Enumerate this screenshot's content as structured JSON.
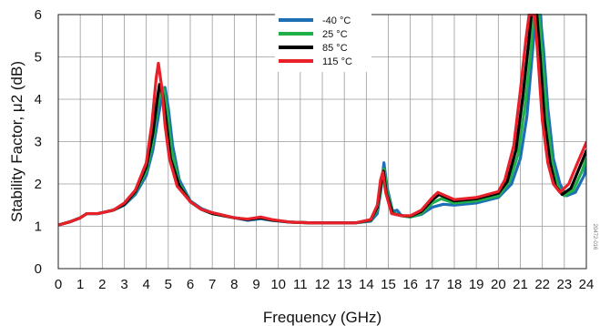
{
  "chart_data": {
    "type": "line",
    "title": "",
    "xlabel": "Frequency (GHz)",
    "ylabel": "Stability Factor, μ2 (dB)",
    "xlim": [
      0,
      24
    ],
    "ylim": [
      0,
      6
    ],
    "xticks": [
      0,
      1,
      2,
      3,
      4,
      5,
      6,
      7,
      8,
      9,
      10,
      11,
      12,
      13,
      14,
      15,
      16,
      17,
      18,
      19,
      20,
      21,
      22,
      23,
      24
    ],
    "yticks": [
      0,
      1,
      2,
      3,
      4,
      5,
      6
    ],
    "grid": true,
    "legend_position": "top-center",
    "side_note": "20472-016",
    "series": [
      {
        "name": "-40 °C",
        "color": "#1f6fb5",
        "points": [
          [
            0,
            1.03
          ],
          [
            0.5,
            1.1
          ],
          [
            1,
            1.2
          ],
          [
            1.3,
            1.3
          ],
          [
            1.8,
            1.3
          ],
          [
            2.5,
            1.38
          ],
          [
            3,
            1.5
          ],
          [
            3.5,
            1.75
          ],
          [
            4,
            2.2
          ],
          [
            4.3,
            2.8
          ],
          [
            4.55,
            3.6
          ],
          [
            4.75,
            4.2
          ],
          [
            4.85,
            4.28
          ],
          [
            5,
            3.8
          ],
          [
            5.2,
            2.9
          ],
          [
            5.5,
            2.1
          ],
          [
            6,
            1.6
          ],
          [
            6.5,
            1.42
          ],
          [
            7,
            1.32
          ],
          [
            8,
            1.2
          ],
          [
            8.6,
            1.14
          ],
          [
            9.2,
            1.18
          ],
          [
            9.7,
            1.14
          ],
          [
            10.5,
            1.1
          ],
          [
            11.5,
            1.08
          ],
          [
            12.5,
            1.08
          ],
          [
            13.5,
            1.08
          ],
          [
            14.2,
            1.12
          ],
          [
            14.5,
            1.3
          ],
          [
            14.65,
            1.8
          ],
          [
            14.8,
            2.5
          ],
          [
            14.95,
            1.9
          ],
          [
            15.2,
            1.35
          ],
          [
            15.4,
            1.38
          ],
          [
            15.6,
            1.25
          ],
          [
            16,
            1.22
          ],
          [
            16.5,
            1.28
          ],
          [
            17,
            1.45
          ],
          [
            17.5,
            1.52
          ],
          [
            18,
            1.5
          ],
          [
            19,
            1.55
          ],
          [
            20,
            1.68
          ],
          [
            20.6,
            2.0
          ],
          [
            21,
            2.6
          ],
          [
            21.3,
            3.6
          ],
          [
            21.5,
            4.8
          ],
          [
            21.7,
            6.0
          ],
          [
            21.9,
            6.0
          ],
          [
            22.05,
            5.2
          ],
          [
            22.25,
            3.8
          ],
          [
            22.5,
            2.6
          ],
          [
            22.8,
            2.0
          ],
          [
            23.1,
            1.72
          ],
          [
            23.5,
            1.8
          ],
          [
            23.9,
            2.2
          ],
          [
            24,
            2.42
          ]
        ]
      },
      {
        "name": "25 °C",
        "color": "#1fb04a",
        "points": [
          [
            0,
            1.03
          ],
          [
            0.5,
            1.1
          ],
          [
            1,
            1.2
          ],
          [
            1.3,
            1.3
          ],
          [
            1.8,
            1.3
          ],
          [
            2.5,
            1.38
          ],
          [
            3,
            1.52
          ],
          [
            3.5,
            1.8
          ],
          [
            4,
            2.3
          ],
          [
            4.3,
            3.0
          ],
          [
            4.5,
            3.8
          ],
          [
            4.7,
            4.3
          ],
          [
            4.8,
            4.25
          ],
          [
            4.95,
            3.7
          ],
          [
            5.15,
            2.8
          ],
          [
            5.5,
            2.0
          ],
          [
            6,
            1.58
          ],
          [
            6.5,
            1.4
          ],
          [
            7,
            1.3
          ],
          [
            8,
            1.2
          ],
          [
            8.6,
            1.16
          ],
          [
            9.2,
            1.2
          ],
          [
            9.7,
            1.15
          ],
          [
            10.5,
            1.1
          ],
          [
            11.5,
            1.08
          ],
          [
            12.5,
            1.08
          ],
          [
            13.5,
            1.08
          ],
          [
            14.2,
            1.14
          ],
          [
            14.5,
            1.4
          ],
          [
            14.7,
            2.0
          ],
          [
            14.8,
            2.35
          ],
          [
            14.95,
            1.8
          ],
          [
            15.2,
            1.32
          ],
          [
            15.6,
            1.25
          ],
          [
            16,
            1.22
          ],
          [
            16.5,
            1.3
          ],
          [
            17,
            1.55
          ],
          [
            17.4,
            1.65
          ],
          [
            18,
            1.55
          ],
          [
            19,
            1.6
          ],
          [
            20,
            1.72
          ],
          [
            20.5,
            2.05
          ],
          [
            20.9,
            2.7
          ],
          [
            21.2,
            3.8
          ],
          [
            21.45,
            5.0
          ],
          [
            21.6,
            6.0
          ],
          [
            21.85,
            6.0
          ],
          [
            22.0,
            5.0
          ],
          [
            22.2,
            3.6
          ],
          [
            22.45,
            2.5
          ],
          [
            22.7,
            1.95
          ],
          [
            23.0,
            1.72
          ],
          [
            23.4,
            1.85
          ],
          [
            23.8,
            2.3
          ],
          [
            24,
            2.6
          ]
        ]
      },
      {
        "name": "85 °C",
        "color": "#000000",
        "points": [
          [
            0,
            1.03
          ],
          [
            0.5,
            1.1
          ],
          [
            1,
            1.2
          ],
          [
            1.3,
            1.3
          ],
          [
            1.8,
            1.3
          ],
          [
            2.5,
            1.38
          ],
          [
            3,
            1.52
          ],
          [
            3.5,
            1.82
          ],
          [
            4,
            2.4
          ],
          [
            4.3,
            3.2
          ],
          [
            4.5,
            4.0
          ],
          [
            4.6,
            4.35
          ],
          [
            4.75,
            4.1
          ],
          [
            4.9,
            3.5
          ],
          [
            5.1,
            2.6
          ],
          [
            5.5,
            1.95
          ],
          [
            6,
            1.58
          ],
          [
            6.5,
            1.4
          ],
          [
            7,
            1.3
          ],
          [
            8,
            1.2
          ],
          [
            8.6,
            1.16
          ],
          [
            9.2,
            1.2
          ],
          [
            9.7,
            1.15
          ],
          [
            10.5,
            1.1
          ],
          [
            11.5,
            1.08
          ],
          [
            12.5,
            1.08
          ],
          [
            13.5,
            1.08
          ],
          [
            14.2,
            1.15
          ],
          [
            14.5,
            1.45
          ],
          [
            14.7,
            2.1
          ],
          [
            14.78,
            2.3
          ],
          [
            14.9,
            1.8
          ],
          [
            15.2,
            1.3
          ],
          [
            15.6,
            1.25
          ],
          [
            16,
            1.24
          ],
          [
            16.5,
            1.35
          ],
          [
            17,
            1.62
          ],
          [
            17.3,
            1.75
          ],
          [
            18,
            1.6
          ],
          [
            19,
            1.65
          ],
          [
            20,
            1.78
          ],
          [
            20.4,
            2.05
          ],
          [
            20.8,
            2.8
          ],
          [
            21.1,
            4.0
          ],
          [
            21.35,
            5.2
          ],
          [
            21.5,
            6.0
          ],
          [
            21.75,
            6.0
          ],
          [
            21.9,
            5.0
          ],
          [
            22.1,
            3.5
          ],
          [
            22.35,
            2.5
          ],
          [
            22.6,
            1.95
          ],
          [
            22.9,
            1.75
          ],
          [
            23.3,
            1.9
          ],
          [
            23.7,
            2.4
          ],
          [
            24,
            2.78
          ]
        ]
      },
      {
        "name": "115 °C",
        "color": "#e8202a",
        "points": [
          [
            0,
            1.03
          ],
          [
            0.5,
            1.1
          ],
          [
            1,
            1.2
          ],
          [
            1.3,
            1.3
          ],
          [
            1.8,
            1.3
          ],
          [
            2.5,
            1.38
          ],
          [
            3,
            1.55
          ],
          [
            3.5,
            1.85
          ],
          [
            4,
            2.5
          ],
          [
            4.25,
            3.4
          ],
          [
            4.45,
            4.5
          ],
          [
            4.55,
            4.85
          ],
          [
            4.7,
            4.3
          ],
          [
            4.85,
            3.4
          ],
          [
            5.05,
            2.6
          ],
          [
            5.4,
            1.95
          ],
          [
            6,
            1.58
          ],
          [
            6.5,
            1.4
          ],
          [
            7,
            1.32
          ],
          [
            8,
            1.2
          ],
          [
            8.6,
            1.17
          ],
          [
            9.2,
            1.22
          ],
          [
            9.7,
            1.16
          ],
          [
            10.5,
            1.1
          ],
          [
            11.5,
            1.08
          ],
          [
            12.5,
            1.08
          ],
          [
            13.5,
            1.08
          ],
          [
            14.2,
            1.16
          ],
          [
            14.5,
            1.5
          ],
          [
            14.65,
            2.1
          ],
          [
            14.75,
            2.28
          ],
          [
            14.88,
            1.8
          ],
          [
            15.15,
            1.3
          ],
          [
            15.6,
            1.25
          ],
          [
            16,
            1.25
          ],
          [
            16.5,
            1.38
          ],
          [
            17,
            1.68
          ],
          [
            17.25,
            1.8
          ],
          [
            18,
            1.63
          ],
          [
            19,
            1.68
          ],
          [
            20,
            1.82
          ],
          [
            20.3,
            2.1
          ],
          [
            20.7,
            2.9
          ],
          [
            21.0,
            4.2
          ],
          [
            21.25,
            5.4
          ],
          [
            21.4,
            6.0
          ],
          [
            21.65,
            6.0
          ],
          [
            21.8,
            5.0
          ],
          [
            22.0,
            3.5
          ],
          [
            22.25,
            2.5
          ],
          [
            22.5,
            2.0
          ],
          [
            22.8,
            1.8
          ],
          [
            23.2,
            2.0
          ],
          [
            23.6,
            2.5
          ],
          [
            24,
            2.98
          ]
        ]
      }
    ]
  }
}
